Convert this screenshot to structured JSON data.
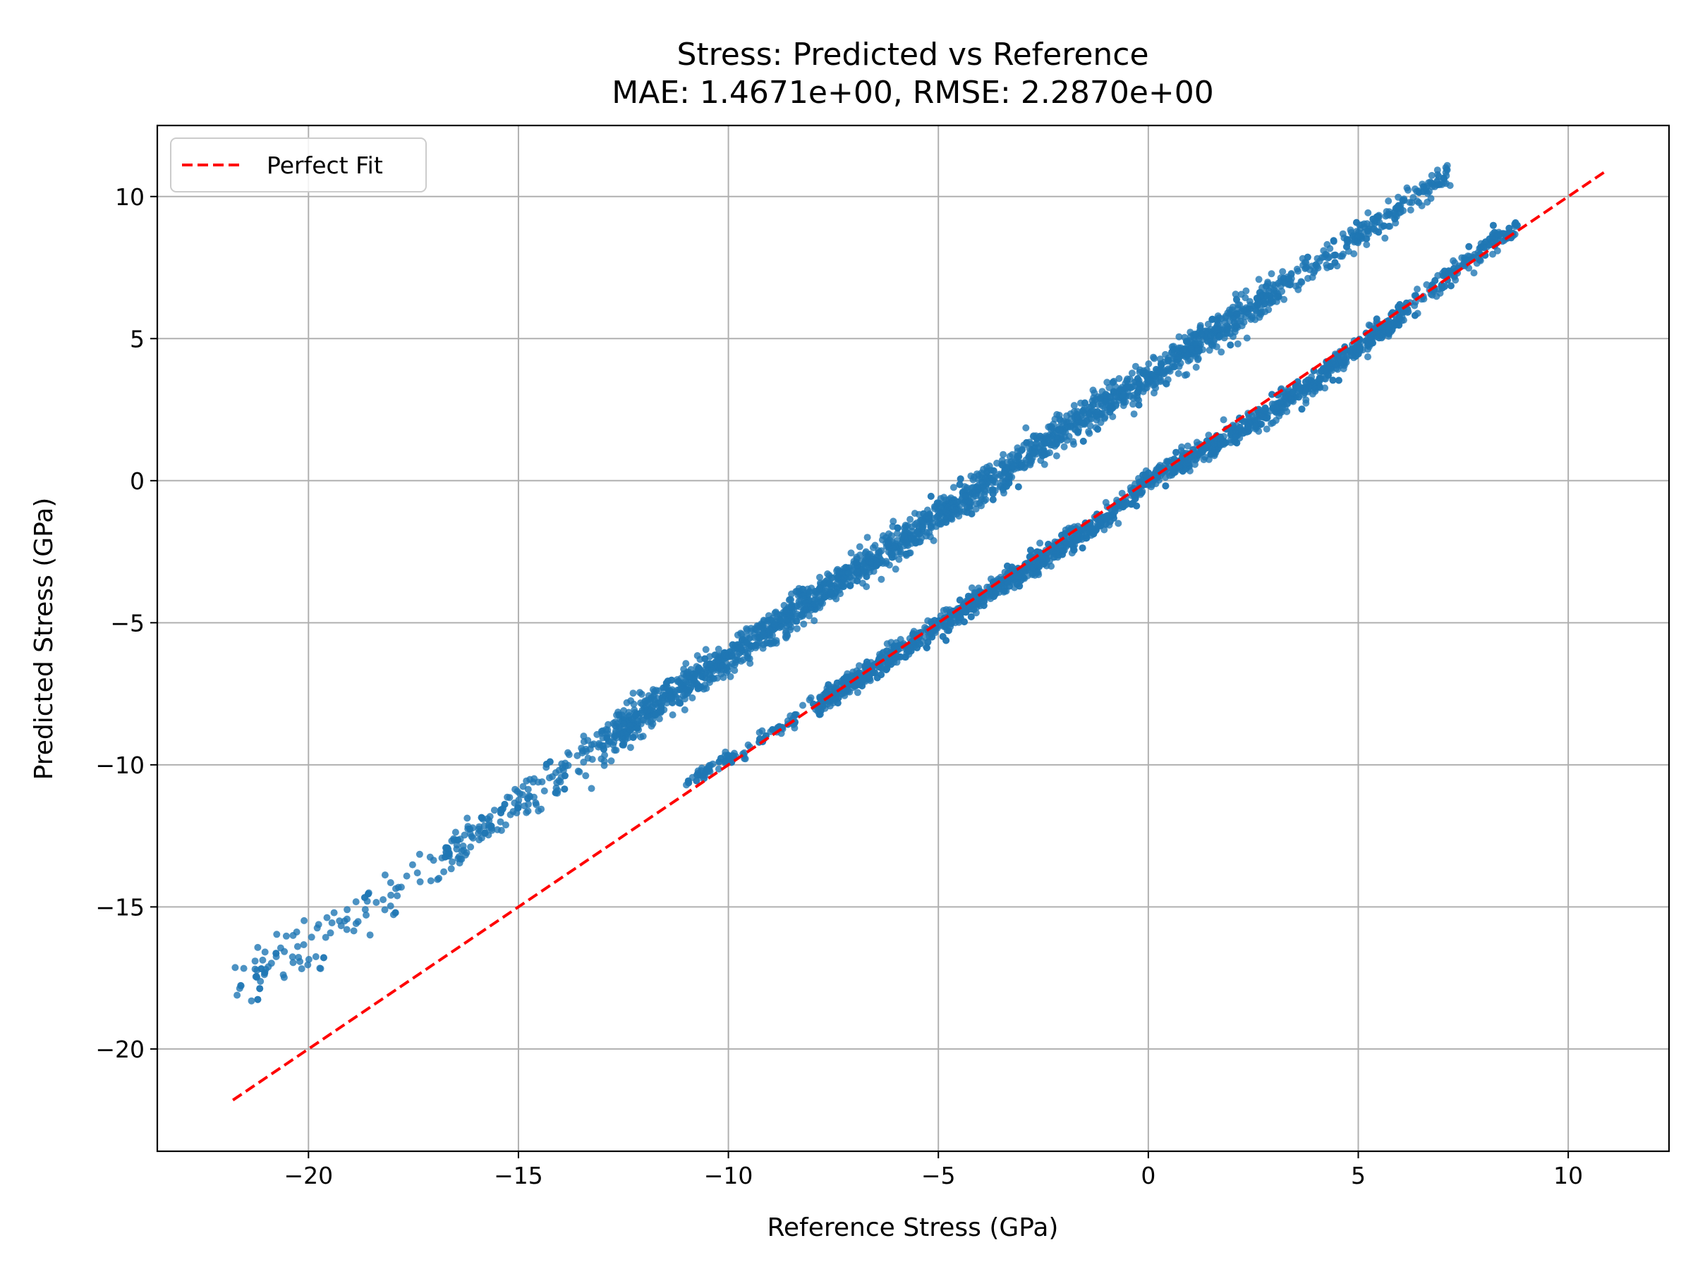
{
  "chart_data": {
    "type": "scatter",
    "title": "Stress: Predicted vs Reference",
    "subtitle": "MAE: 1.4671e+00, RMSE: 2.2870e+00",
    "xlabel": "Reference Stress (GPa)",
    "ylabel": "Predicted Stress (GPa)",
    "xlim": [
      -23.6,
      12.4
    ],
    "ylim": [
      -23.6,
      12.5
    ],
    "xticks": [
      -20,
      -15,
      -10,
      -5,
      0,
      5,
      10
    ],
    "yticks": [
      -20,
      -15,
      -10,
      -5,
      0,
      5,
      10
    ],
    "xtick_labels": [
      "−20",
      "−15",
      "−10",
      "−5",
      "0",
      "5",
      "10"
    ],
    "ytick_labels": [
      "−20",
      "−15",
      "−10",
      "−5",
      "0",
      "5",
      "10"
    ],
    "grid": true,
    "legend": {
      "position": "top-left",
      "entries": [
        "Perfect Fit"
      ]
    },
    "colors": {
      "points": "#1f77b4",
      "perfect_fit": "#ff0000",
      "grid": "#b0b0b0"
    },
    "perfect_fit": {
      "name": "Perfect Fit",
      "x": [
        -21.8,
        10.9
      ],
      "y": [
        -21.8,
        10.9
      ]
    },
    "clusters": [
      {
        "description": "upper band",
        "trend": [
          {
            "x": -21.7,
            "y": -17.7
          },
          {
            "x": -20,
            "y": -16.3
          },
          {
            "x": -18,
            "y": -14.5
          },
          {
            "x": -15,
            "y": -11.3
          },
          {
            "x": -12,
            "y": -8.2
          },
          {
            "x": -10,
            "y": -6.2
          },
          {
            "x": -7,
            "y": -3.2
          },
          {
            "x": -4,
            "y": -0.3
          },
          {
            "x": -2,
            "y": 1.8
          },
          {
            "x": 0,
            "y": 3.6
          },
          {
            "x": 2,
            "y": 5.6
          },
          {
            "x": 4,
            "y": 7.6
          },
          {
            "x": 6,
            "y": 9.6
          },
          {
            "x": 7.2,
            "y": 10.9
          }
        ]
      },
      {
        "description": "lower band",
        "trend": [
          {
            "x": -11,
            "y": -10.6
          },
          {
            "x": -9,
            "y": -8.9
          },
          {
            "x": -7,
            "y": -7.0
          },
          {
            "x": -5,
            "y": -5.1
          },
          {
            "x": -3,
            "y": -3.2
          },
          {
            "x": -1,
            "y": -1.3
          },
          {
            "x": 0,
            "y": 0.0
          },
          {
            "x": 2,
            "y": 1.6
          },
          {
            "x": 4,
            "y": 3.5
          },
          {
            "x": 6,
            "y": 5.8
          },
          {
            "x": 8,
            "y": 8.2
          },
          {
            "x": 8.8,
            "y": 8.9
          }
        ]
      }
    ]
  }
}
